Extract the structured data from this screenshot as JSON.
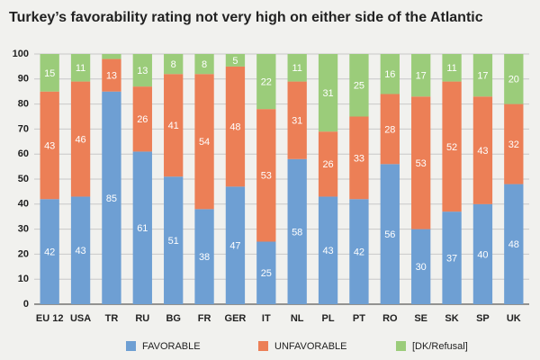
{
  "chart_data": {
    "type": "stacked_bar",
    "title": "Turkey’s favorability rating not very high on either side of the Atlantic",
    "categories": [
      "EU 12",
      "USA",
      "TR",
      "RU",
      "BG",
      "FR",
      "GER",
      "IT",
      "NL",
      "PL",
      "PT",
      "RO",
      "SE",
      "SK",
      "SP",
      "UK"
    ],
    "series": [
      {
        "name": "FAVORABLE",
        "color": "#6e9fd3",
        "values": [
          42,
          43,
          85,
          61,
          51,
          38,
          47,
          25,
          58,
          43,
          42,
          56,
          30,
          37,
          40,
          48
        ]
      },
      {
        "name": "UNFAVORABLE",
        "color": "#ec7f56",
        "values": [
          43,
          46,
          13,
          26,
          41,
          54,
          48,
          53,
          31,
          26,
          33,
          28,
          53,
          52,
          43,
          32
        ]
      },
      {
        "name": "[DK/Refusal]",
        "color": "#9bcc7a",
        "values": [
          15,
          11,
          2,
          13,
          8,
          8,
          5,
          22,
          11,
          31,
          25,
          16,
          17,
          11,
          17,
          20
        ]
      }
    ],
    "ylim": [
      0,
      100
    ],
    "yticks": [
      0,
      10,
      20,
      30,
      40,
      50,
      60,
      70,
      80,
      90,
      100
    ],
    "grid": true,
    "legend": "bottom"
  }
}
